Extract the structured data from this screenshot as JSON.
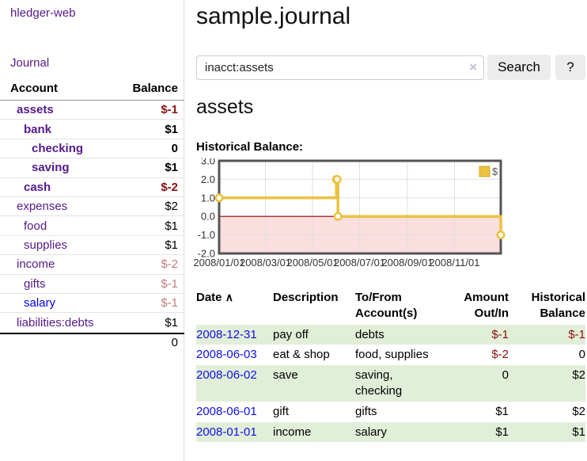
{
  "brand": "hledger-web",
  "nav": {
    "journal": "Journal"
  },
  "title": "sample.journal",
  "search": {
    "value": "inacct:assets",
    "clear": "×",
    "submit": "Search",
    "help": "?"
  },
  "account_page": {
    "heading": "assets",
    "chart_title": "Historical Balance:"
  },
  "sidebar_accounts": {
    "col_account": "Account",
    "col_balance": "Balance",
    "rows": [
      {
        "name": "assets",
        "indent": 0,
        "balance": "$-1",
        "bold": true,
        "balance_tone": "strong-negative"
      },
      {
        "name": "bank",
        "indent": 1,
        "balance": "$1",
        "bold": true,
        "balance_tone": "normal"
      },
      {
        "name": "checking",
        "indent": 2,
        "balance": "0",
        "bold": true,
        "balance_tone": "normal"
      },
      {
        "name": "saving",
        "indent": 2,
        "balance": "$1",
        "bold": true,
        "balance_tone": "normal"
      },
      {
        "name": "cash",
        "indent": 1,
        "balance": "$-2",
        "bold": true,
        "balance_tone": "strong-negative"
      },
      {
        "name": "expenses",
        "indent": 0,
        "balance": "$2",
        "bold": false,
        "balance_tone": "normal"
      },
      {
        "name": "food",
        "indent": 1,
        "balance": "$1",
        "bold": false,
        "balance_tone": "normal"
      },
      {
        "name": "supplies",
        "indent": 1,
        "balance": "$1",
        "bold": false,
        "balance_tone": "normal"
      },
      {
        "name": "income",
        "indent": 0,
        "balance": "$-2",
        "bold": false,
        "balance_tone": "soft-negative"
      },
      {
        "name": "gifts",
        "indent": 1,
        "balance": "$-1",
        "bold": false,
        "balance_tone": "soft-negative"
      },
      {
        "name": "salary",
        "indent": 1,
        "balance": "$-1",
        "bold": false,
        "balance_tone": "soft-negative",
        "link_style": "blue"
      },
      {
        "name": "liabilities:debts",
        "indent": 0,
        "balance": "$1",
        "bold": false,
        "balance_tone": "normal"
      }
    ],
    "total": "0"
  },
  "chart_data": {
    "type": "line",
    "step": true,
    "title": "Historical Balance",
    "legend": [
      {
        "label": "$",
        "color": "#edc240"
      }
    ],
    "legend_position": "top-right",
    "grid": true,
    "series": [
      {
        "name": "$",
        "color": "#edc240",
        "points": [
          {
            "date": "2008-01-01",
            "day": 0,
            "value": 1
          },
          {
            "date": "2008-06-01",
            "day": 152,
            "value": 2
          },
          {
            "date": "2008-06-02",
            "day": 153,
            "value": 2
          },
          {
            "date": "2008-06-03",
            "day": 154,
            "value": 0
          },
          {
            "date": "2008-12-31",
            "day": 365,
            "value": -1
          }
        ]
      }
    ],
    "x_ticks": [
      {
        "day": 0,
        "label": "2008/01/01"
      },
      {
        "day": 60,
        "label": "2008/03/01"
      },
      {
        "day": 121,
        "label": "2008/05/01"
      },
      {
        "day": 182,
        "label": "2008/07/01"
      },
      {
        "day": 244,
        "label": "2008/09/01"
      },
      {
        "day": 305,
        "label": "2008/11/01"
      }
    ],
    "y_ticks": [
      {
        "value": 3,
        "label": "3.0"
      },
      {
        "value": 2,
        "label": "2.0"
      },
      {
        "value": 1,
        "label": "1.0"
      },
      {
        "value": 0,
        "label": "0.0"
      },
      {
        "value": -1,
        "label": "-1.0"
      },
      {
        "value": -2,
        "label": "-2.0"
      }
    ],
    "xlim_days": [
      0,
      365
    ],
    "ylim": [
      -2,
      3
    ],
    "negative_region_color": "#fbdede",
    "zero_line_color": "#8b0000"
  },
  "register": {
    "columns": {
      "date": "Date",
      "sort_indicator": "∧",
      "description": "Description",
      "accounts_line1": "To/From",
      "accounts_line2": "Account(s)",
      "amount_line1": "Amount",
      "amount_line2": "Out/In",
      "balance_line1": "Historical",
      "balance_line2": "Balance"
    },
    "rows": [
      {
        "date": "2008-12-31",
        "description": "pay off",
        "accounts": "debts",
        "amount": "$-1",
        "amount_negative": true,
        "balance": "$-1",
        "balance_negative": true
      },
      {
        "date": "2008-06-03",
        "description": "eat & shop",
        "accounts": "food, supplies",
        "amount": "$-2",
        "amount_negative": true,
        "balance": "0",
        "balance_negative": false
      },
      {
        "date": "2008-06-02",
        "description": "save",
        "accounts": "saving, checking",
        "amount": "0",
        "amount_negative": false,
        "balance": "$2",
        "balance_negative": false
      },
      {
        "date": "2008-06-01",
        "description": "gift",
        "accounts": "gifts",
        "amount": "$1",
        "amount_negative": false,
        "balance": "$2",
        "balance_negative": false
      },
      {
        "date": "2008-01-01",
        "description": "income",
        "accounts": "salary",
        "amount": "$1",
        "amount_negative": false,
        "balance": "$1",
        "balance_negative": false
      }
    ]
  },
  "colors": {
    "link_purple": "#551a8b",
    "link_blue": "#0000ee",
    "negative_strong": "#8b1010",
    "negative_soft": "#c17d7d",
    "row_stripe_green": "#e2efd8",
    "chart_line": "#edc240",
    "chart_negative_region": "#fbdede",
    "chart_zero_line": "#8b0000"
  }
}
